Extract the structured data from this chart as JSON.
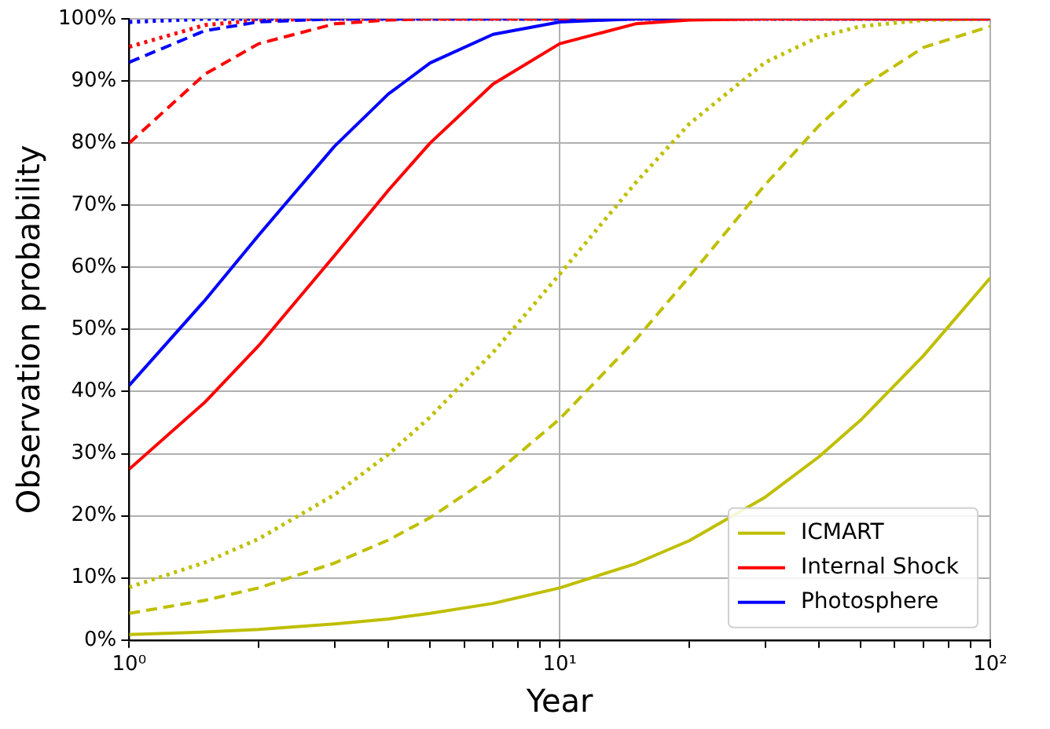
{
  "chart_data": {
    "type": "line",
    "xlabel": "Year",
    "ylabel": "Observation probability",
    "log": "x",
    "grid": true,
    "legend": "bottom right",
    "marker": "none",
    "x": [
      1,
      1.5,
      2,
      3,
      4,
      5,
      7,
      10,
      15,
      20,
      30,
      40,
      50,
      70,
      100
    ],
    "xlim": [
      1,
      100
    ],
    "xticks": [
      {
        "value": 1,
        "label": "10⁰"
      },
      {
        "value": 2,
        "label": null
      },
      {
        "value": 3,
        "label": null
      },
      {
        "value": 4,
        "label": null
      },
      {
        "value": 5,
        "label": null
      },
      {
        "value": 6,
        "label": null
      },
      {
        "value": 7,
        "label": null
      },
      {
        "value": 8,
        "label": null
      },
      {
        "value": 9,
        "label": null
      },
      {
        "value": 10,
        "label": "10¹"
      },
      {
        "value": 20,
        "label": null
      },
      {
        "value": 30,
        "label": null
      },
      {
        "value": 40,
        "label": null
      },
      {
        "value": 50,
        "label": null
      },
      {
        "value": 60,
        "label": null
      },
      {
        "value": 70,
        "label": null
      },
      {
        "value": 80,
        "label": null
      },
      {
        "value": 90,
        "label": null
      },
      {
        "value": 100,
        "label": "10²"
      }
    ],
    "ylim": [
      0,
      100
    ],
    "yticks": [
      {
        "value": 0,
        "label": "0%"
      },
      {
        "value": 10,
        "label": "10%"
      },
      {
        "value": 20,
        "label": "20%"
      },
      {
        "value": 30,
        "label": "30%"
      },
      {
        "value": 40,
        "label": "40%"
      },
      {
        "value": 50,
        "label": "50%"
      },
      {
        "value": 60,
        "label": "60%"
      },
      {
        "value": 70,
        "label": "70%"
      },
      {
        "value": 80,
        "label": "80%"
      },
      {
        "value": 90,
        "label": "90%"
      },
      {
        "value": 100,
        "label": "100%"
      }
    ],
    "series": [
      {
        "name": "ICMART",
        "color": "#bfbf00",
        "line_style": "solid",
        "values": [
          0.9,
          1.3,
          1.7,
          2.6,
          3.4,
          4.3,
          5.9,
          8.4,
          12.3,
          16,
          23,
          29.5,
          35.4,
          45.8,
          58.3
        ]
      },
      {
        "name": "Internal Shock",
        "color": "#ff0000",
        "line_style": "solid",
        "values": [
          27.5,
          38.3,
          47.4,
          61.9,
          72.4,
          80,
          89.5,
          96,
          99.2,
          99.8,
          100,
          100,
          100,
          100,
          100
        ]
      },
      {
        "name": "Photosphere",
        "color": "#0000ff",
        "line_style": "solid",
        "values": [
          41,
          54.7,
          65.2,
          79.5,
          87.9,
          92.9,
          97.5,
          99.5,
          100,
          100,
          100,
          100,
          100,
          100,
          100
        ]
      },
      {
        "color": "#bfbf00",
        "line_style": "dashed",
        "values": [
          4.3,
          6.4,
          8.4,
          12.4,
          16.1,
          19.7,
          26.5,
          35.6,
          48.3,
          58.5,
          73.3,
          82.8,
          88.9,
          95.4,
          98.8
        ]
      },
      {
        "color": "#ff0000",
        "line_style": "dashed",
        "values": [
          80,
          91.1,
          96,
          99.2,
          99.8,
          100,
          100,
          100,
          100,
          100,
          100,
          100,
          100,
          100,
          100
        ]
      },
      {
        "color": "#0000ff",
        "line_style": "dashed",
        "values": [
          93,
          98.1,
          99.5,
          100,
          100,
          100,
          100,
          100,
          100,
          100,
          100,
          100,
          100,
          100,
          100
        ]
      },
      {
        "color": "#bfbf00",
        "line_style": "dotted",
        "values": [
          8.5,
          12.5,
          16.3,
          23.4,
          29.9,
          35.9,
          46.3,
          58.9,
          73.6,
          83.1,
          93,
          97.1,
          98.8,
          99.8,
          100
        ]
      },
      {
        "color": "#ff0000",
        "line_style": "dotted",
        "values": [
          95.5,
          99,
          99.8,
          100,
          100,
          100,
          100,
          100,
          100,
          100,
          100,
          100,
          100,
          100,
          100
        ]
      },
      {
        "color": "#0000ff",
        "line_style": "dotted",
        "values": [
          99.5,
          100,
          100,
          100,
          100,
          100,
          100,
          100,
          100,
          100,
          100,
          100,
          100,
          100,
          100
        ]
      }
    ]
  }
}
